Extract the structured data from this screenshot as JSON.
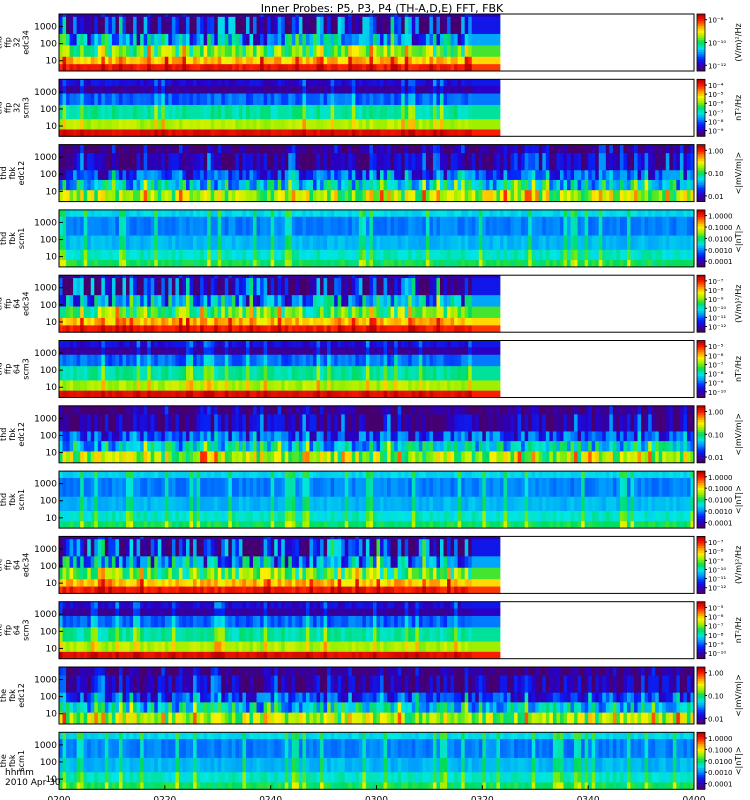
{
  "title": "Inner Probes: P5, P3, P4 (TH-A,D,E) FFT, FBK",
  "date_label": "2010 Apr 30",
  "time_axis_label": "hhmm",
  "x_ticks": [
    "0200",
    "0220",
    "0240",
    "0300",
    "0320",
    "0340",
    "0400"
  ],
  "panels": [
    {
      "id": "tha-ffp32-edc34",
      "probe": "tha",
      "type": "spec",
      "var_lines": [
        "tha",
        "ffp",
        "32",
        "edc34"
      ],
      "yticks": [
        "1000",
        "100",
        "10"
      ],
      "cbar_label": "(V/m)²/Hz",
      "cbar_ticks": [
        "10⁻⁸",
        "10⁻¹⁰",
        "10⁻¹²"
      ],
      "data_end": "0323",
      "fill_until": "0318",
      "class": "edc34"
    },
    {
      "id": "tha-ffp32-scm3",
      "probe": "tha",
      "type": "spec",
      "var_lines": [
        "tha",
        "ffp",
        "32",
        "scm3"
      ],
      "yticks": [
        "1000",
        "100",
        "10"
      ],
      "cbar_label": "nT²/Hz",
      "cbar_ticks": [
        "10⁻⁴",
        "10⁻⁵",
        "10⁻⁶",
        "10⁻⁷",
        "10⁻⁸",
        "10⁻⁹"
      ],
      "data_end": "0323",
      "fill_until": "0318",
      "class": "scm3"
    },
    {
      "id": "thd-fbk-edc12",
      "probe": "thd",
      "type": "fbk",
      "var_lines": [
        "thd",
        "fbk",
        "edc12"
      ],
      "yticks": [
        "1000",
        "100",
        "10"
      ],
      "cbar_label": "<|mV/m|>",
      "cbar_ticks": [
        "1.00",
        "0.10",
        "0.01"
      ],
      "data_end": "0400",
      "class": "edc12"
    },
    {
      "id": "thd-fbk-scm1",
      "probe": "thd",
      "type": "fbk",
      "var_lines": [
        "thd",
        "fbk",
        "scm1"
      ],
      "yticks": [
        "1000",
        "100",
        "10"
      ],
      "cbar_label": "<|nT|>",
      "cbar_ticks": [
        "1.0000",
        "0.1000",
        "0.0100",
        "0.0010",
        "0.0001"
      ],
      "data_end": "0400",
      "class": "scm1"
    },
    {
      "id": "thd-ffp64-edc34",
      "probe": "thd",
      "type": "spec",
      "var_lines": [
        "thd",
        "ffp",
        "64",
        "edc34"
      ],
      "yticks": [
        "1000",
        "100",
        "10"
      ],
      "cbar_label": "(V/m)²/Hz",
      "cbar_ticks": [
        "10⁻⁷",
        "10⁻⁸",
        "10⁻⁹",
        "10⁻¹⁰",
        "10⁻¹¹",
        "10⁻¹²"
      ],
      "data_end": "0323",
      "fill_until": "0318",
      "class": "edc34"
    },
    {
      "id": "thd-ffp64-scm3",
      "probe": "thd",
      "type": "spec",
      "var_lines": [
        "thd",
        "ffp",
        "64",
        "scm3"
      ],
      "yticks": [
        "1000",
        "100",
        "10"
      ],
      "cbar_label": "nT²/Hz",
      "cbar_ticks": [
        "10⁻⁵",
        "10⁻⁶",
        "10⁻⁷",
        "10⁻⁸",
        "10⁻⁹",
        "10⁻¹⁰"
      ],
      "data_end": "0323",
      "fill_until": "0318",
      "class": "scm3"
    },
    {
      "id": "thd-fbk-edc12-b",
      "probe": "thd",
      "type": "fbk",
      "var_lines": [
        "thd",
        "fbk",
        "edc12"
      ],
      "yticks": [
        "1000",
        "100",
        "10"
      ],
      "cbar_label": "<|mV/m|>",
      "cbar_ticks": [
        "1.00",
        "0.10",
        "0.01"
      ],
      "data_end": "0400",
      "class": "edc12"
    },
    {
      "id": "thd-fbk-scm1-b",
      "probe": "thd",
      "type": "fbk",
      "var_lines": [
        "thd",
        "fbk",
        "scm1"
      ],
      "yticks": [
        "1000",
        "100",
        "10"
      ],
      "cbar_label": "<|nT|>",
      "cbar_ticks": [
        "1.0000",
        "0.1000",
        "0.0100",
        "0.0010",
        "0.0001"
      ],
      "data_end": "0400",
      "class": "scm1"
    },
    {
      "id": "the-ffp64-edc34",
      "probe": "the",
      "type": "spec",
      "var_lines": [
        "the",
        "ffp",
        "64",
        "edc34"
      ],
      "yticks": [
        "1000",
        "100",
        "10"
      ],
      "cbar_label": "(V/m)²/Hz",
      "cbar_ticks": [
        "10⁻⁷",
        "10⁻⁸",
        "10⁻⁹",
        "10⁻¹⁰",
        "10⁻¹¹",
        "10⁻¹²"
      ],
      "data_end": "0323",
      "fill_until": "0318",
      "class": "edc34"
    },
    {
      "id": "the-ffp64-scm3",
      "probe": "the",
      "type": "spec",
      "var_lines": [
        "the",
        "ffp",
        "64",
        "scm3"
      ],
      "yticks": [
        "1000",
        "100",
        "10"
      ],
      "cbar_label": "nT²/Hz",
      "cbar_ticks": [
        "10⁻⁵",
        "10⁻⁶",
        "10⁻⁷",
        "10⁻⁸",
        "10⁻⁹",
        "10⁻¹⁰"
      ],
      "data_end": "0323",
      "fill_until": "0318",
      "class": "scm3"
    },
    {
      "id": "the-fbk-edc12",
      "probe": "the",
      "type": "fbk",
      "var_lines": [
        "the",
        "fbk",
        "edc12"
      ],
      "yticks": [
        "1000",
        "100",
        "10"
      ],
      "cbar_label": "<|mV/m|>",
      "cbar_ticks": [
        "1.00",
        "0.10",
        "0.01"
      ],
      "data_end": "0400",
      "class": "edc12"
    },
    {
      "id": "the-fbk-scm1",
      "probe": "the",
      "type": "fbk",
      "var_lines": [
        "the",
        "fbk",
        "scm1"
      ],
      "yticks": [
        "1000",
        "100",
        "10"
      ],
      "cbar_label": "<|nT|>",
      "cbar_ticks": [
        "1.0000",
        "0.1000",
        "0.0100",
        "0.0010",
        "0.0001"
      ],
      "data_end": "0400",
      "class": "scm1"
    }
  ],
  "chart_data": {
    "type": "heatmap",
    "title": "Inner Probes: P5, P3, P4 (TH-A,D,E) FFT, FBK",
    "x_label": "hhmm",
    "date": "2010 Apr 30",
    "x_range": [
      "0200",
      "0400"
    ],
    "x_ticks": [
      "0200",
      "0220",
      "0240",
      "0300",
      "0320",
      "0340",
      "0400"
    ],
    "y_scale": "log",
    "y_range_hz": [
      5,
      4000
    ],
    "y_ticks": [
      10,
      100,
      1000
    ],
    "colormap": "rainbow (purple-blue-cyan-green-yellow-red)",
    "series": [
      {
        "name": "tha ffp 32 edc34",
        "units": "(V/m)²/Hz",
        "data_end": "0323"
      },
      {
        "name": "tha ffp 32 scm3",
        "units": "nT²/Hz",
        "data_end": "0323"
      },
      {
        "name": "thd fbk edc12",
        "units": "<|mV/m|>",
        "data_end": "0400"
      },
      {
        "name": "thd fbk scm1",
        "units": "<|nT|>",
        "data_end": "0400"
      },
      {
        "name": "thd ffp 64 edc34",
        "units": "(V/m)²/Hz",
        "data_end": "0323"
      },
      {
        "name": "thd ffp 64 scm3",
        "units": "nT²/Hz",
        "data_end": "0323"
      },
      {
        "name": "thd fbk edc12",
        "units": "<|mV/m|>",
        "data_end": "0400"
      },
      {
        "name": "thd fbk scm1",
        "units": "<|nT|>",
        "data_end": "0400"
      },
      {
        "name": "the ffp 64 edc34",
        "units": "(V/m)²/Hz",
        "data_end": "0323"
      },
      {
        "name": "the ffp 64 scm3",
        "units": "nT²/Hz",
        "data_end": "0323"
      },
      {
        "name": "the fbk edc12",
        "units": "<|mV/m|>",
        "data_end": "0400"
      },
      {
        "name": "the fbk scm1",
        "units": "<|nT|>",
        "data_end": "0400"
      }
    ]
  }
}
